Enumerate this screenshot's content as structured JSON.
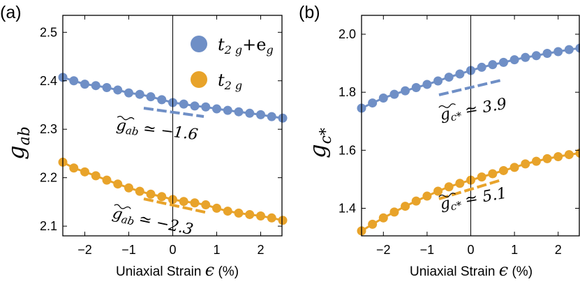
{
  "colors": {
    "series_a": "#6f8fc6",
    "series_b": "#e8a32a",
    "axis": "#000000"
  },
  "chart_data": [
    {
      "type": "line",
      "panel_label": "(a)",
      "ylabel": "g_ab",
      "ylabel_main": "g",
      "ylabel_sub": "ab",
      "xlabel_text": "Uniaxial Strain ",
      "xlabel_symbol": "ϵ",
      "xlabel_unit": " (%)",
      "xlim": [
        -2.5,
        2.5
      ],
      "ylim": [
        2.08,
        2.535
      ],
      "xticks": [
        -2,
        -1,
        0,
        1,
        2
      ],
      "yticks": [
        2.1,
        2.2,
        2.3,
        2.4,
        2.5
      ],
      "ytick_labels": [
        "2.1",
        "2.2",
        "2.3",
        "2.4",
        "2.5"
      ],
      "xtick_labels": [
        "−2",
        "−1",
        "0",
        "1",
        "2"
      ],
      "legend": [
        {
          "label_main": "t",
          "label_sub": "2 g",
          "label_rest": "+e",
          "label_rest_sub": "g"
        },
        {
          "label_main": "t",
          "label_sub": "2 g",
          "label_rest": "",
          "label_rest_sub": ""
        }
      ],
      "series": [
        {
          "name": "t2g+eg",
          "x": [
            -2.5,
            -2.25,
            -2.0,
            -1.75,
            -1.5,
            -1.25,
            -1.0,
            -0.75,
            -0.5,
            -0.25,
            0.0,
            0.25,
            0.5,
            0.75,
            1.0,
            1.25,
            1.5,
            1.75,
            2.0,
            2.25,
            2.5
          ],
          "values": [
            2.407,
            2.4,
            2.393,
            2.39,
            2.386,
            2.381,
            2.375,
            2.372,
            2.367,
            2.361,
            2.355,
            2.352,
            2.348,
            2.346,
            2.342,
            2.339,
            2.336,
            2.333,
            2.33,
            2.326,
            2.323
          ],
          "slope_annotation": {
            "text": "≃ −1.6",
            "symbol": "g",
            "symbol_sub": "ab"
          }
        },
        {
          "name": "t2g",
          "x": [
            -2.5,
            -2.25,
            -2.0,
            -1.75,
            -1.5,
            -1.25,
            -1.0,
            -0.75,
            -0.5,
            -0.25,
            0.0,
            0.25,
            0.5,
            0.75,
            1.0,
            1.25,
            1.5,
            1.75,
            2.0,
            2.25,
            2.5
          ],
          "values": [
            2.232,
            2.22,
            2.212,
            2.204,
            2.195,
            2.187,
            2.179,
            2.172,
            2.166,
            2.161,
            2.155,
            2.151,
            2.148,
            2.144,
            2.137,
            2.131,
            2.127,
            2.124,
            2.121,
            2.117,
            2.112
          ],
          "slope_annotation": {
            "text": "≃ −2.3",
            "symbol": "g",
            "symbol_sub": "ab"
          }
        }
      ]
    },
    {
      "type": "line",
      "panel_label": "(b)",
      "ylabel": "g_c*",
      "ylabel_main": "g",
      "ylabel_sub": "c*",
      "xlabel_text": "Uniaxial Strain ",
      "xlabel_symbol": "ϵ",
      "xlabel_unit": " (%)",
      "xlim": [
        -2.5,
        2.5
      ],
      "ylim": [
        1.305,
        2.065
      ],
      "xticks": [
        -2,
        -1,
        0,
        1,
        2
      ],
      "yticks": [
        1.4,
        1.6,
        1.8,
        2.0
      ],
      "ytick_labels": [
        "1.4",
        "1.6",
        "1.8",
        "2.0"
      ],
      "xtick_labels": [
        "−2",
        "−1",
        "0",
        "1",
        "2"
      ],
      "series": [
        {
          "name": "t2g+eg",
          "x": [
            -2.5,
            -2.25,
            -2.0,
            -1.75,
            -1.5,
            -1.25,
            -1.0,
            -0.75,
            -0.5,
            -0.25,
            0.0,
            0.25,
            0.5,
            0.75,
            1.0,
            1.25,
            1.5,
            1.75,
            2.0,
            2.25,
            2.5
          ],
          "values": [
            1.745,
            1.763,
            1.78,
            1.793,
            1.805,
            1.816,
            1.827,
            1.839,
            1.852,
            1.863,
            1.875,
            1.886,
            1.895,
            1.903,
            1.912,
            1.92,
            1.926,
            1.934,
            1.94,
            1.947,
            1.952
          ],
          "slope_annotation": {
            "text": "≃ 3.9",
            "symbol": "g",
            "symbol_sub": "c*"
          }
        },
        {
          "name": "t2g",
          "x": [
            -2.5,
            -2.25,
            -2.0,
            -1.75,
            -1.5,
            -1.25,
            -1.0,
            -0.75,
            -0.5,
            -0.25,
            0.0,
            0.25,
            0.5,
            0.75,
            1.0,
            1.25,
            1.5,
            1.75,
            2.0,
            2.25,
            2.5
          ],
          "values": [
            1.322,
            1.345,
            1.367,
            1.387,
            1.407,
            1.425,
            1.442,
            1.459,
            1.474,
            1.486,
            1.497,
            1.508,
            1.519,
            1.53,
            1.541,
            1.553,
            1.562,
            1.571,
            1.578,
            1.585,
            1.59
          ],
          "slope_annotation": {
            "text": "≃ 5.1",
            "symbol": "g",
            "symbol_sub": "c*"
          }
        }
      ]
    }
  ]
}
